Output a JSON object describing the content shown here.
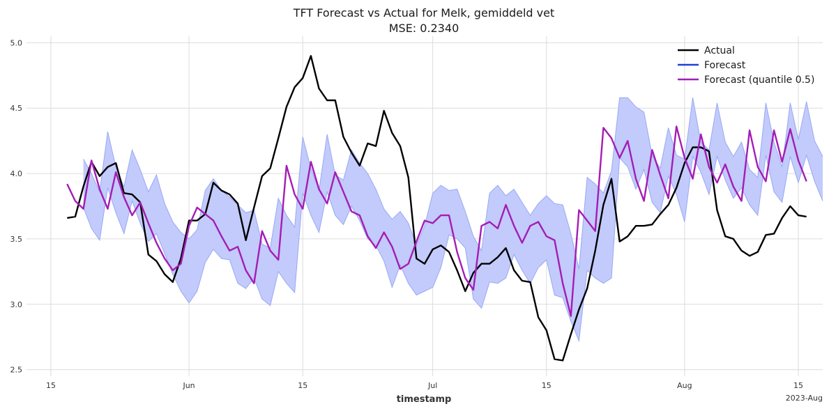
{
  "chart_data": {
    "type": "line",
    "title": "TFT Forecast vs Actual for Melk, gemiddeld vet",
    "subtitle": "MSE: 0.2340",
    "xlabel": "timestamp",
    "ylabel": "",
    "x_start": "2023-05-17",
    "x_range": [
      "2023-05-12",
      "2023-08-18"
    ],
    "ylim": [
      2.45,
      5.05
    ],
    "yticks": [
      2.5,
      3.0,
      3.5,
      4.0,
      4.5,
      5.0
    ],
    "ytick_labels": [
      "2.5",
      "3.0",
      "3.5",
      "4.0",
      "4.5",
      "5.0"
    ],
    "xticks": [
      {
        "date": "2023-05-15",
        "label": "15"
      },
      {
        "date": "2023-06-01",
        "label": "Jun"
      },
      {
        "date": "2023-06-15",
        "label": "15"
      },
      {
        "date": "2023-07-01",
        "label": "Jul"
      },
      {
        "date": "2023-07-15",
        "label": "15"
      },
      {
        "date": "2023-08-01",
        "label": "Aug"
      },
      {
        "date": "2023-08-15",
        "label": "15"
      }
    ],
    "x_offset_label": "2023-Aug",
    "grid": true,
    "legend_position": "top-right",
    "legend": [
      "Actual",
      "Forecast",
      "Forecast (quantile 0.5)"
    ],
    "colors": {
      "actual": "#000000",
      "forecast": "#1f3fdd",
      "quantile": "#a51cb5",
      "band_fill": "#c2cbfb",
      "band_edge": "#98a8f4"
    },
    "series": [
      {
        "name": "Actual",
        "values": [
          3.66,
          3.67,
          3.9,
          4.09,
          3.98,
          4.05,
          4.08,
          3.85,
          3.84,
          3.78,
          3.38,
          3.33,
          3.23,
          3.17,
          3.35,
          3.64,
          3.64,
          3.69,
          3.93,
          3.87,
          3.84,
          3.77,
          3.49,
          3.74,
          3.98,
          4.04,
          4.27,
          4.51,
          4.66,
          4.73,
          4.9,
          4.65,
          4.56,
          4.56,
          4.28,
          4.16,
          4.06,
          4.23,
          4.21,
          4.48,
          4.31,
          4.21,
          3.97,
          3.35,
          3.31,
          3.42,
          3.45,
          3.4,
          3.26,
          3.1,
          3.24,
          3.31,
          3.31,
          3.36,
          3.43,
          3.26,
          3.18,
          3.17,
          2.9,
          2.8,
          2.58,
          2.57,
          2.77,
          2.96,
          3.12,
          3.41,
          3.76,
          3.96,
          3.48,
          3.52,
          3.6,
          3.6,
          3.61,
          3.69,
          3.76,
          3.89,
          4.08,
          4.2,
          4.2,
          4.17,
          3.72,
          3.52,
          3.5,
          3.41,
          3.37,
          3.4,
          3.53,
          3.54,
          3.66,
          3.75,
          3.68,
          3.67
        ]
      },
      {
        "name": "Forecast",
        "start_index": 2,
        "lower": [
          3.74,
          3.58,
          3.49,
          3.89,
          3.7,
          3.54,
          3.79,
          3.62,
          3.48,
          3.54,
          3.39,
          3.23,
          3.1,
          3.01,
          3.1,
          3.32,
          3.42,
          3.35,
          3.34,
          3.16,
          3.12,
          3.2,
          3.04,
          2.99,
          3.25,
          3.16,
          3.09,
          3.85,
          3.68,
          3.55,
          3.86,
          3.68,
          3.61,
          3.75,
          3.64,
          3.5,
          3.45,
          3.33,
          3.13,
          3.3,
          3.16,
          3.07,
          3.1,
          3.13,
          3.28,
          3.53,
          3.5,
          3.43,
          3.04,
          2.97,
          3.17,
          3.16,
          3.2,
          3.38,
          3.26,
          3.16,
          3.28,
          3.34,
          3.07,
          3.05,
          2.87,
          2.72,
          3.26,
          3.2,
          3.16,
          3.2,
          4.12,
          4.05,
          3.88,
          4.03,
          3.78,
          3.7,
          3.98,
          3.84,
          3.63,
          4.13,
          4.01,
          3.84,
          4.13,
          3.95,
          3.81,
          3.89,
          3.76,
          3.68,
          4.14,
          3.86,
          3.78,
          4.13,
          3.93,
          4.14,
          3.94,
          3.79
        ],
        "upper": [
          4.11,
          4.0,
          3.86,
          4.32,
          4.05,
          3.9,
          4.18,
          4.03,
          3.86,
          3.99,
          3.77,
          3.63,
          3.55,
          3.5,
          3.57,
          3.87,
          3.96,
          3.87,
          3.82,
          3.76,
          3.7,
          3.72,
          3.46,
          3.43,
          3.81,
          3.68,
          3.59,
          4.28,
          4.04,
          3.87,
          4.3,
          3.99,
          3.95,
          4.18,
          4.08,
          4.0,
          3.88,
          3.73,
          3.65,
          3.71,
          3.62,
          3.45,
          3.6,
          3.85,
          3.91,
          3.87,
          3.88,
          3.71,
          3.52,
          3.41,
          3.85,
          3.91,
          3.83,
          3.88,
          3.78,
          3.68,
          3.77,
          3.83,
          3.77,
          3.76,
          3.54,
          3.27,
          3.97,
          3.92,
          3.85,
          4.02,
          4.58,
          4.58,
          4.51,
          4.47,
          4.14,
          4.04,
          4.35,
          4.14,
          4.11,
          4.58,
          4.24,
          4.18,
          4.54,
          4.24,
          4.13,
          4.24,
          4.03,
          3.97,
          4.54,
          4.24,
          4.05,
          4.54,
          4.26,
          4.55,
          4.25,
          4.13
        ]
      },
      {
        "name": "Forecast (quantile 0.5)",
        "values": [
          3.92,
          3.79,
          3.73,
          4.1,
          3.88,
          3.73,
          4.01,
          3.82,
          3.68,
          3.78,
          3.62,
          3.47,
          3.35,
          3.26,
          3.31,
          3.6,
          3.74,
          3.69,
          3.64,
          3.52,
          3.41,
          3.44,
          3.26,
          3.16,
          3.56,
          3.41,
          3.34,
          4.06,
          3.84,
          3.73,
          4.09,
          3.88,
          3.77,
          4.01,
          3.86,
          3.71,
          3.68,
          3.52,
          3.43,
          3.55,
          3.44,
          3.27,
          3.31,
          3.48,
          3.64,
          3.62,
          3.68,
          3.68,
          3.4,
          3.2,
          3.11,
          3.6,
          3.63,
          3.58,
          3.76,
          3.6,
          3.47,
          3.6,
          3.63,
          3.52,
          3.49,
          3.16,
          2.91,
          3.72,
          3.64,
          3.56,
          4.35,
          4.27,
          4.12,
          4.25,
          3.96,
          3.79,
          4.18,
          3.99,
          3.81,
          4.36,
          4.12,
          3.96,
          4.3,
          4.05,
          3.93,
          4.07,
          3.9,
          3.79,
          4.33,
          4.05,
          3.94,
          4.33,
          4.09,
          4.34,
          4.1,
          3.94
        ]
      }
    ]
  }
}
